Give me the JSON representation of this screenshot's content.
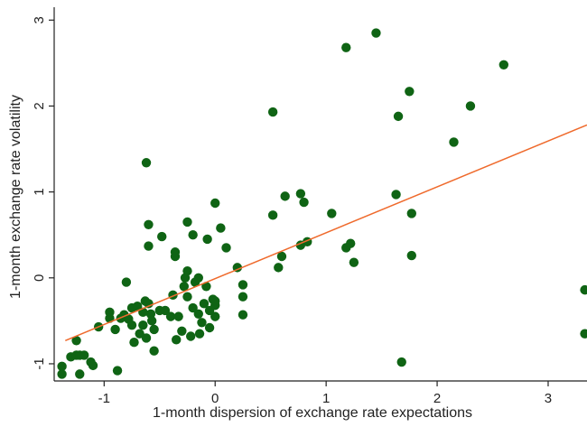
{
  "chart_data": {
    "type": "scatter",
    "xlabel": "1-month dispersion of exchange rate expectations",
    "ylabel": "1-month exchange rate volatility",
    "xlim": [
      -1.45,
      3.35
    ],
    "ylim": [
      -1.2,
      3.15
    ],
    "xticks": [
      -1,
      0,
      1,
      2,
      3
    ],
    "yticks": [
      -1,
      0,
      1,
      2,
      3
    ],
    "grid": false,
    "marker_color": "#0f6414",
    "fit_line_color": "#ef6a2c",
    "fit_line": {
      "x": [
        -1.35,
        3.35
      ],
      "y": [
        -0.73,
        1.78
      ]
    },
    "points": [
      {
        "x": -1.38,
        "y": -1.03
      },
      {
        "x": -1.38,
        "y": -1.12
      },
      {
        "x": -1.3,
        "y": -0.92
      },
      {
        "x": -1.25,
        "y": -0.9
      },
      {
        "x": -1.22,
        "y": -0.9
      },
      {
        "x": -1.25,
        "y": -0.73
      },
      {
        "x": -1.22,
        "y": -1.12
      },
      {
        "x": -1.18,
        "y": -0.9
      },
      {
        "x": -1.12,
        "y": -0.98
      },
      {
        "x": -1.1,
        "y": -1.02
      },
      {
        "x": -1.05,
        "y": -0.57
      },
      {
        "x": -0.95,
        "y": -0.47
      },
      {
        "x": -0.95,
        "y": -0.4
      },
      {
        "x": -0.9,
        "y": -0.6
      },
      {
        "x": -0.88,
        "y": -1.08
      },
      {
        "x": -0.85,
        "y": -0.47
      },
      {
        "x": -0.82,
        "y": -0.43
      },
      {
        "x": -0.8,
        "y": -0.05
      },
      {
        "x": -0.78,
        "y": -0.48
      },
      {
        "x": -0.75,
        "y": -0.35
      },
      {
        "x": -0.75,
        "y": -0.55
      },
      {
        "x": -0.73,
        "y": -0.75
      },
      {
        "x": -0.7,
        "y": -0.33
      },
      {
        "x": -0.68,
        "y": -0.65
      },
      {
        "x": -0.65,
        "y": -0.4
      },
      {
        "x": -0.65,
        "y": -0.55
      },
      {
        "x": -0.63,
        "y": -0.27
      },
      {
        "x": -0.62,
        "y": -0.7
      },
      {
        "x": -0.6,
        "y": 0.37
      },
      {
        "x": -0.6,
        "y": 0.62
      },
      {
        "x": -0.62,
        "y": 1.34
      },
      {
        "x": -0.6,
        "y": -0.3
      },
      {
        "x": -0.58,
        "y": -0.42
      },
      {
        "x": -0.57,
        "y": -0.5
      },
      {
        "x": -0.55,
        "y": -0.6
      },
      {
        "x": -0.55,
        "y": -0.85
      },
      {
        "x": -0.5,
        "y": -0.38
      },
      {
        "x": -0.48,
        "y": 0.48
      },
      {
        "x": -0.45,
        "y": -0.38
      },
      {
        "x": -0.4,
        "y": -0.45
      },
      {
        "x": -0.38,
        "y": -0.2
      },
      {
        "x": -0.36,
        "y": 0.25
      },
      {
        "x": -0.36,
        "y": 0.3
      },
      {
        "x": -0.35,
        "y": -0.72
      },
      {
        "x": -0.33,
        "y": -0.45
      },
      {
        "x": -0.3,
        "y": -0.62
      },
      {
        "x": -0.28,
        "y": -0.1
      },
      {
        "x": -0.27,
        "y": 0.0
      },
      {
        "x": -0.25,
        "y": 0.65
      },
      {
        "x": -0.25,
        "y": 0.08
      },
      {
        "x": -0.25,
        "y": -0.22
      },
      {
        "x": -0.22,
        "y": -0.68
      },
      {
        "x": -0.2,
        "y": 0.5
      },
      {
        "x": -0.2,
        "y": -0.35
      },
      {
        "x": -0.18,
        "y": -0.05
      },
      {
        "x": -0.15,
        "y": 0.0
      },
      {
        "x": -0.15,
        "y": -0.42
      },
      {
        "x": -0.14,
        "y": -0.65
      },
      {
        "x": -0.12,
        "y": -0.52
      },
      {
        "x": -0.1,
        "y": -0.3
      },
      {
        "x": -0.08,
        "y": -0.1
      },
      {
        "x": -0.07,
        "y": 0.45
      },
      {
        "x": -0.05,
        "y": -0.38
      },
      {
        "x": -0.05,
        "y": -0.58
      },
      {
        "x": -0.02,
        "y": -0.25
      },
      {
        "x": 0.0,
        "y": 0.87
      },
      {
        "x": 0.0,
        "y": -0.32
      },
      {
        "x": 0.0,
        "y": -0.45
      },
      {
        "x": 0.0,
        "y": -0.27
      },
      {
        "x": 0.05,
        "y": 0.58
      },
      {
        "x": 0.1,
        "y": 0.35
      },
      {
        "x": 0.2,
        "y": 0.12
      },
      {
        "x": 0.25,
        "y": -0.22
      },
      {
        "x": 0.25,
        "y": -0.43
      },
      {
        "x": 0.25,
        "y": -0.08
      },
      {
        "x": 0.52,
        "y": 1.93
      },
      {
        "x": 0.52,
        "y": 0.73
      },
      {
        "x": 0.57,
        "y": 0.12
      },
      {
        "x": 0.6,
        "y": 0.25
      },
      {
        "x": 0.63,
        "y": 0.95
      },
      {
        "x": 0.77,
        "y": 0.98
      },
      {
        "x": 0.77,
        "y": 0.38
      },
      {
        "x": 0.8,
        "y": 0.88
      },
      {
        "x": 0.83,
        "y": 0.42
      },
      {
        "x": 1.05,
        "y": 0.75
      },
      {
        "x": 1.18,
        "y": 0.35
      },
      {
        "x": 1.22,
        "y": 0.4
      },
      {
        "x": 1.25,
        "y": 0.18
      },
      {
        "x": 1.18,
        "y": 2.68
      },
      {
        "x": 1.45,
        "y": 2.85
      },
      {
        "x": 1.63,
        "y": 0.97
      },
      {
        "x": 1.65,
        "y": 1.88
      },
      {
        "x": 1.68,
        "y": -0.98
      },
      {
        "x": 1.75,
        "y": 2.17
      },
      {
        "x": 1.77,
        "y": 0.75
      },
      {
        "x": 1.77,
        "y": 0.26
      },
      {
        "x": 2.15,
        "y": 1.58
      },
      {
        "x": 2.3,
        "y": 2.0
      },
      {
        "x": 2.6,
        "y": 2.48
      },
      {
        "x": 3.33,
        "y": -0.14
      },
      {
        "x": 3.33,
        "y": -0.65
      }
    ]
  }
}
